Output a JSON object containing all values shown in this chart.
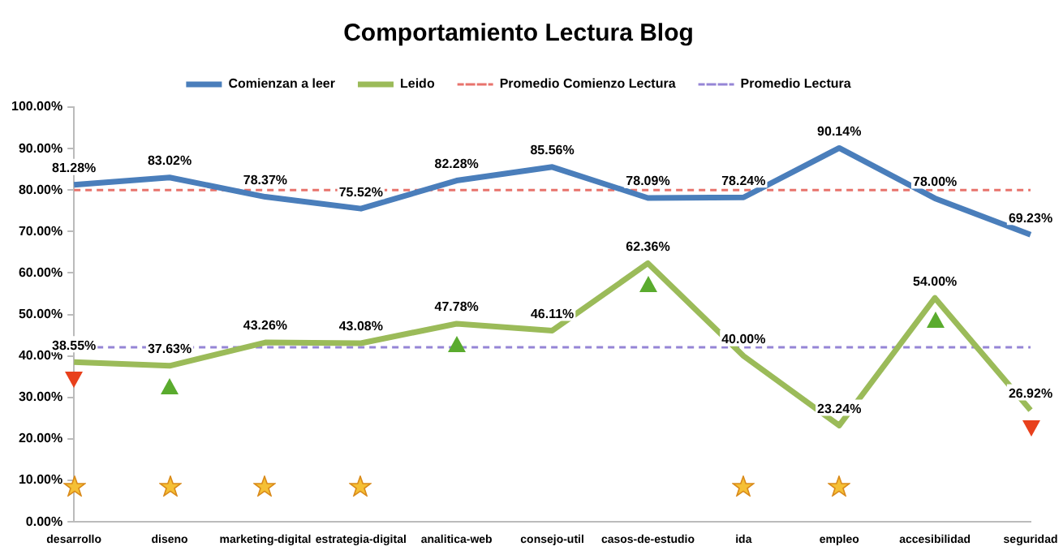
{
  "chart_data": {
    "type": "line",
    "title": "Comportamiento Lectura Blog",
    "categories": [
      "desarrollo",
      "diseno",
      "marketing-digital",
      "estrategia-digital",
      "analitica-web",
      "consejo-util",
      "casos-de-estudio",
      "ida",
      "empleo",
      "accesibilidad",
      "seguridad"
    ],
    "series": [
      {
        "name": "Comienzan a leer",
        "color": "#4a7ebb",
        "values": [
          81.28,
          83.02,
          78.37,
          75.52,
          82.28,
          85.56,
          78.09,
          78.24,
          90.14,
          78.0,
          69.23
        ],
        "value_labels": [
          "81.28%",
          "83.02%",
          "78.37%",
          "75.52%",
          "82.28%",
          "85.56%",
          "78.09%",
          "78.24%",
          "90.14%",
          "78.00%",
          "69.23%"
        ]
      },
      {
        "name": "Leido",
        "color": "#9bbb59",
        "values": [
          38.55,
          37.63,
          43.26,
          43.08,
          47.78,
          46.11,
          62.36,
          40.0,
          23.24,
          54.0,
          26.92
        ],
        "value_labels": [
          "38.55%",
          "37.63%",
          "43.26%",
          "43.08%",
          "47.78%",
          "46.11%",
          "62.36%",
          "40.00%",
          "23.24%",
          "54.00%",
          "26.92%"
        ]
      }
    ],
    "ref_lines": [
      {
        "axis": "y",
        "value": 79.98,
        "label": "Promedio Comienzo Lectura",
        "color": "#e8736c",
        "line_style": "dashed"
      },
      {
        "axis": "y",
        "value": 42.08,
        "label": "Promedio Lectura",
        "color": "#9585d6",
        "line_style": "dashed"
      }
    ],
    "ylim": [
      0,
      100
    ],
    "yticks": [
      {
        "value": 0,
        "label": "0.00%"
      },
      {
        "value": 10,
        "label": "10.00%"
      },
      {
        "value": 20,
        "label": "20.00%"
      },
      {
        "value": 30,
        "label": "30.00%"
      },
      {
        "value": 40,
        "label": "40.00%"
      },
      {
        "value": 50,
        "label": "50.00%"
      },
      {
        "value": 60,
        "label": "60.00%"
      },
      {
        "value": 70,
        "label": "70.00%"
      },
      {
        "value": 80,
        "label": "80.00%"
      },
      {
        "value": 90,
        "label": "90.00%"
      },
      {
        "value": 100,
        "label": "100.00%"
      }
    ],
    "grid": false,
    "legend": "top",
    "marker": "none",
    "line_style": "solid"
  }
}
